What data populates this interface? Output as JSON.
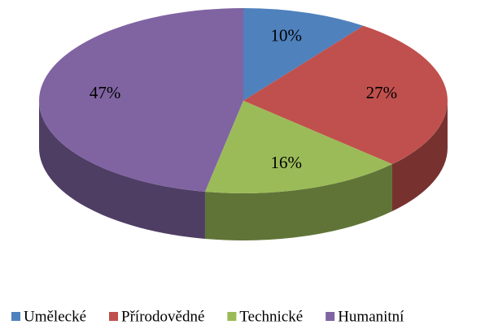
{
  "chart_data": {
    "type": "pie",
    "categories": [
      "Umělecké",
      "Přírodovědné",
      "Technické",
      "Humanitní"
    ],
    "values": [
      10,
      27,
      16,
      47
    ],
    "value_labels": [
      "10%",
      "27%",
      "16%",
      "47%"
    ],
    "colors": [
      "#4f81bd",
      "#c0504d",
      "#9bbb59",
      "#8064a2"
    ],
    "legend": "bottom"
  }
}
